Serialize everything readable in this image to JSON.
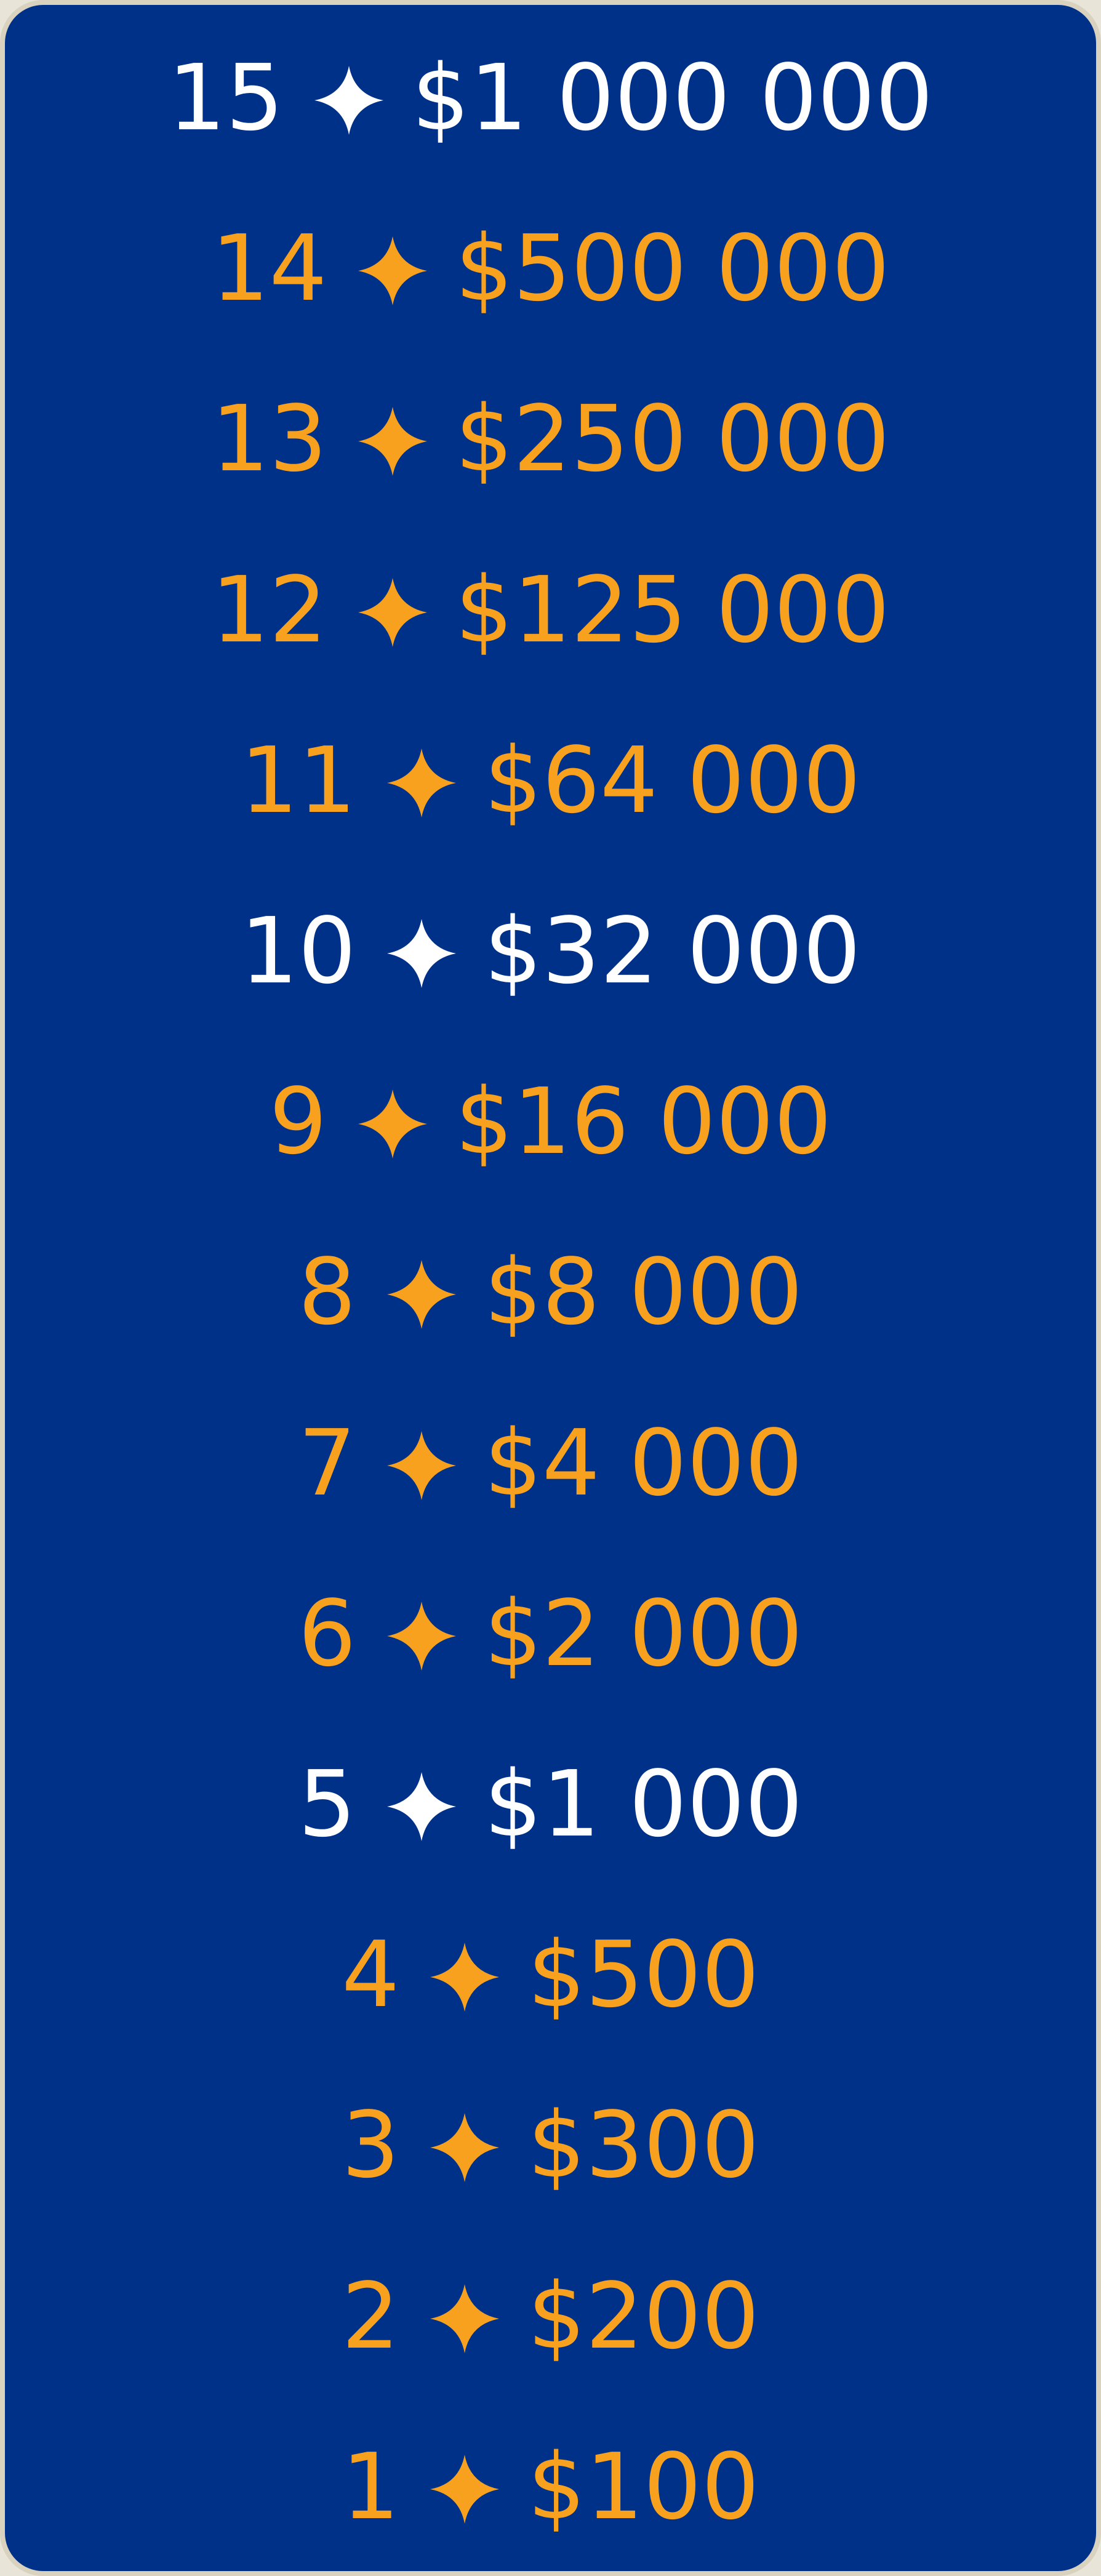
{
  "money_ladder": {
    "rungs": [
      {
        "level": "15",
        "prize": "$1 000 000",
        "milestone": true
      },
      {
        "level": "14",
        "prize": "$500 000",
        "milestone": false
      },
      {
        "level": "13",
        "prize": "$250 000",
        "milestone": false
      },
      {
        "level": "12",
        "prize": "$125 000",
        "milestone": false
      },
      {
        "level": "11",
        "prize": "$64 000",
        "milestone": false
      },
      {
        "level": "10",
        "prize": "$32 000",
        "milestone": true
      },
      {
        "level": "9",
        "prize": "$16 000",
        "milestone": false
      },
      {
        "level": "8",
        "prize": "$8 000",
        "milestone": false
      },
      {
        "level": "7",
        "prize": "$4 000",
        "milestone": false
      },
      {
        "level": "6",
        "prize": "$2 000",
        "milestone": false
      },
      {
        "level": "5",
        "prize": "$1 000",
        "milestone": true
      },
      {
        "level": "4",
        "prize": "$500",
        "milestone": false
      },
      {
        "level": "3",
        "prize": "$300",
        "milestone": false
      },
      {
        "level": "2",
        "prize": "$200",
        "milestone": false
      },
      {
        "level": "1",
        "prize": "$100",
        "milestone": false
      }
    ],
    "icon": "four-point-star-icon"
  },
  "colors": {
    "panel_background": "#003189",
    "panel_border": "#d9d2bf",
    "milestone_text": "#ffffff",
    "regular_text": "#f7a11f"
  }
}
